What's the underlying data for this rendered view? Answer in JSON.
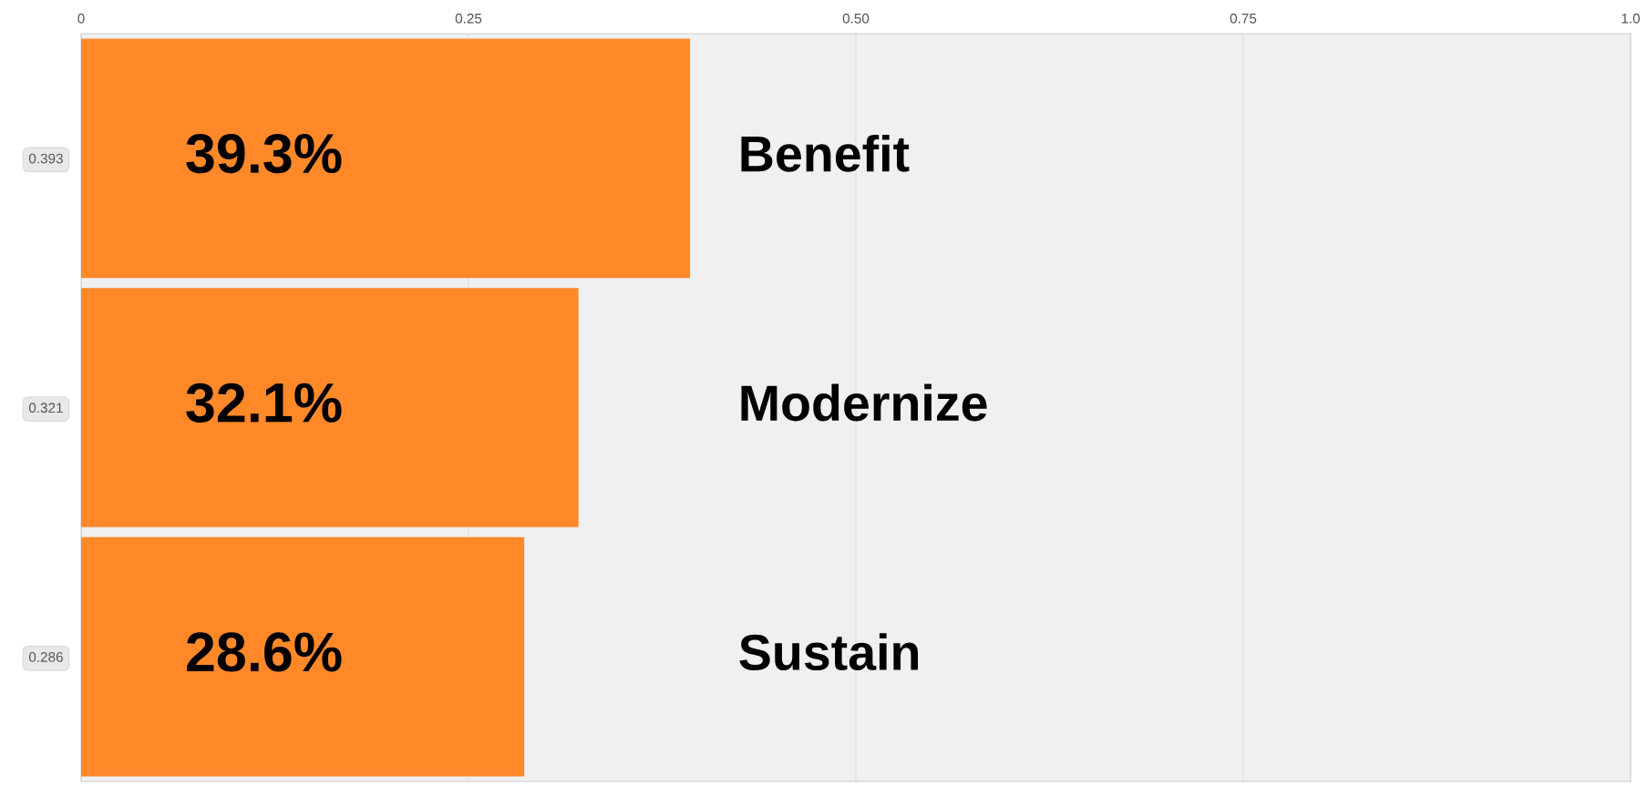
{
  "chart_data": {
    "type": "bar",
    "orientation": "horizontal",
    "categories": [
      "0.393",
      "0.321",
      "0.286"
    ],
    "values": [
      0.393,
      0.321,
      0.286
    ],
    "color": "#ff8829",
    "value_labels": [
      "39.3%",
      "32.1%",
      "28.6%"
    ],
    "annotations": [
      "Benefit",
      "Modernize",
      "Sustain"
    ],
    "xlim": [
      0,
      1
    ],
    "xticks": [
      0,
      {
        "value": 0.25,
        "label": "0.25"
      },
      {
        "value": 0.5,
        "label": "0.50"
      },
      {
        "value": 0.75,
        "label": "0.75"
      },
      {
        "value": 1,
        "label": "1.0"
      }
    ],
    "grid": "x"
  }
}
